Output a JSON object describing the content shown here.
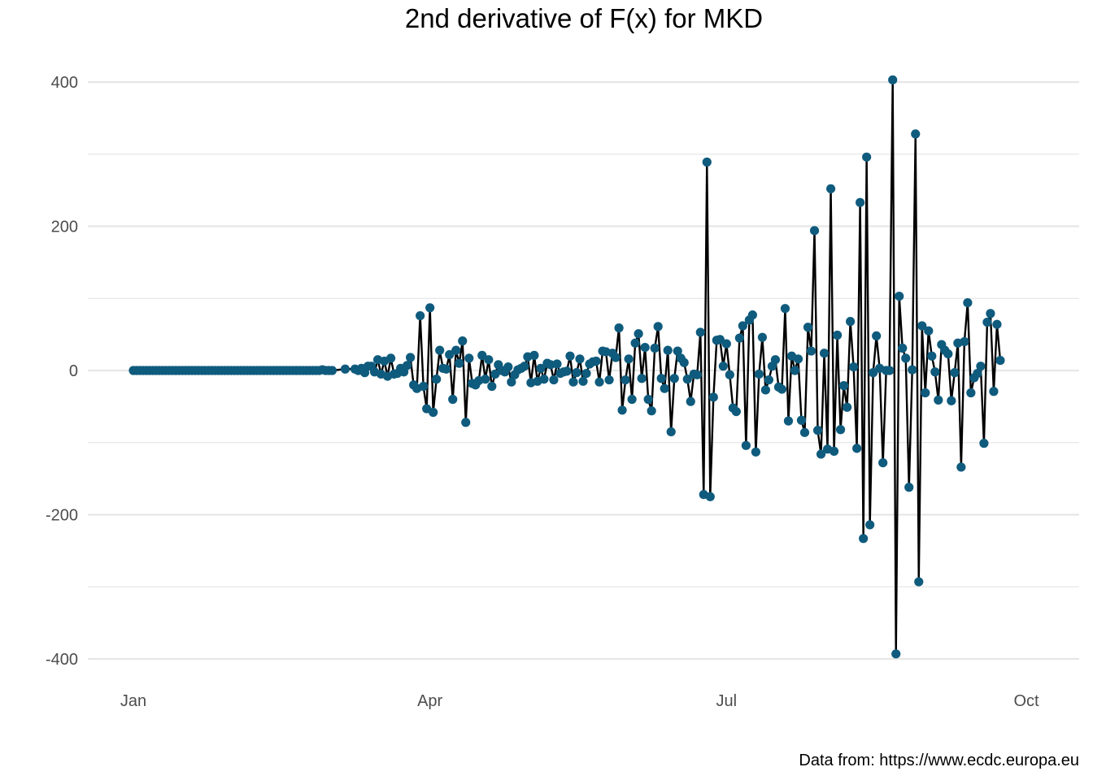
{
  "chart_data": {
    "type": "line",
    "title": "2nd derivative of F(x) for MKD",
    "caption": "Data from: https://www.ecdc.europa.eu",
    "xlabel": "",
    "ylabel": "",
    "x_start": "2020-01-01",
    "x_ticks": [
      {
        "label": "Jan",
        "date": "2020-01-01"
      },
      {
        "label": "Apr",
        "date": "2020-04-01"
      },
      {
        "label": "Jul",
        "date": "2020-07-01"
      },
      {
        "label": "Oct",
        "date": "2020-10-01"
      }
    ],
    "y_ticks": [
      400,
      200,
      0,
      -200,
      -400
    ],
    "ylim": [
      -425,
      405
    ],
    "grid": true,
    "legend": "none",
    "colors": {
      "line": "#000000",
      "point": "#0f5b7d",
      "grid": "#e6e6e6"
    },
    "series": [
      {
        "values": [
          0,
          0,
          0,
          0,
          0,
          0,
          0,
          0,
          0,
          0,
          0,
          0,
          0,
          0,
          0,
          0,
          0,
          0,
          0,
          0,
          0,
          0,
          0,
          0,
          0,
          0,
          0,
          0,
          0,
          0,
          0,
          0,
          0,
          0,
          0,
          0,
          0,
          0,
          0,
          0,
          0,
          0,
          0,
          0,
          0,
          0,
          0,
          0,
          0,
          0,
          0,
          0,
          0,
          0,
          0,
          0,
          0,
          0,
          1,
          0,
          0,
          0,
          null,
          null,
          null,
          2,
          null,
          null,
          2,
          0,
          3,
          -3,
          6,
          6,
          -2,
          15,
          -5,
          13,
          -8,
          17,
          -5,
          -4,
          3,
          -2,
          7,
          18,
          -20,
          -25,
          76,
          -22,
          -53,
          87,
          -58,
          -12,
          28,
          3,
          2,
          22,
          -40,
          28,
          10,
          41,
          -72,
          17,
          -18,
          -20,
          -14,
          21,
          -12,
          15,
          -22,
          -5,
          8,
          0,
          -2,
          5,
          -16,
          -6,
          1,
          3,
          6,
          19,
          -17,
          21,
          -15,
          3,
          -12,
          10,
          8,
          -13,
          9,
          -4,
          -2,
          -1,
          20,
          -16,
          -3,
          16,
          -15,
          -4,
          9,
          12,
          13,
          -16,
          27,
          26,
          -13,
          24,
          18,
          59,
          -55,
          -13,
          16,
          -40,
          38,
          51,
          -11,
          32,
          -40,
          -56,
          31,
          61,
          -11,
          -25,
          28,
          -85,
          -11,
          27,
          17,
          11,
          -12,
          -43,
          -5,
          -6,
          53,
          -172,
          289,
          -175,
          -37,
          42,
          43,
          6,
          37,
          -6,
          -52,
          -57,
          45,
          62,
          -104,
          70,
          77,
          -113,
          -5,
          46,
          -27,
          -13,
          6,
          15,
          -23,
          -26,
          86,
          -70,
          20,
          0,
          16,
          -69,
          -86,
          60,
          27,
          194,
          -83,
          -116,
          24,
          -109,
          252,
          -112,
          49,
          -82,
          -21,
          -51,
          68,
          5,
          -108,
          233,
          -233,
          296,
          -214,
          -3,
          48,
          3,
          -128,
          0,
          0,
          403,
          -393,
          103,
          31,
          17,
          -162,
          1,
          328,
          -293,
          62,
          -31,
          55,
          20,
          -2,
          -41,
          36,
          28,
          23,
          -42,
          -3,
          38,
          -134,
          40,
          94,
          -31,
          -10,
          -4,
          6,
          -101,
          67,
          79,
          -29,
          64,
          14
        ]
      }
    ]
  }
}
